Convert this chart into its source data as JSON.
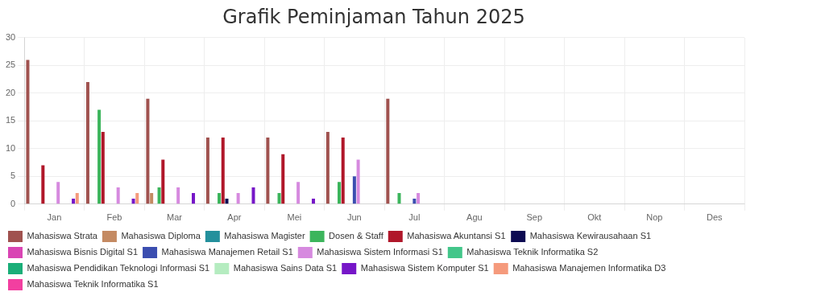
{
  "chart_data": {
    "type": "bar",
    "title": "Grafik Peminjaman Tahun 2025",
    "categories": [
      "Jan",
      "Feb",
      "Mar",
      "Apr",
      "Mei",
      "Jun",
      "Jul",
      "Agu",
      "Sep",
      "Okt",
      "Nop",
      "Des"
    ],
    "series": [
      {
        "name": "Mahasiswa Strata",
        "color": "#a0524f",
        "values": [
          26,
          22,
          19,
          12,
          12,
          13,
          19,
          0,
          0,
          0,
          0,
          0
        ]
      },
      {
        "name": "Mahasiswa Diploma",
        "color": "#c48a62",
        "values": [
          0,
          0,
          2,
          0,
          0,
          0,
          0,
          0,
          0,
          0,
          0,
          0
        ]
      },
      {
        "name": "Mahasiswa Magister",
        "color": "#23909c",
        "values": [
          0,
          0,
          0,
          0,
          0,
          0,
          0,
          0,
          0,
          0,
          0,
          0
        ]
      },
      {
        "name": "Dosen & Staff",
        "color": "#3cb55c",
        "values": [
          0,
          17,
          3,
          2,
          2,
          4,
          2,
          0,
          0,
          0,
          0,
          0
        ]
      },
      {
        "name": "Mahasiswa Akuntansi S1",
        "color": "#b0172a",
        "values": [
          7,
          13,
          8,
          12,
          9,
          12,
          0,
          0,
          0,
          0,
          0,
          0
        ]
      },
      {
        "name": "Mahasiswa Kewirausahaan S1",
        "color": "#0c0a52",
        "values": [
          0,
          0,
          0,
          1,
          0,
          0,
          0,
          0,
          0,
          0,
          0,
          0
        ]
      },
      {
        "name": "Mahasiswa Bisnis Digital S1",
        "color": "#d945b4",
        "values": [
          0,
          0,
          0,
          0,
          0,
          0,
          0,
          0,
          0,
          0,
          0,
          0
        ]
      },
      {
        "name": "Mahasiswa Manajemen Retail S1",
        "color": "#3b4eb0",
        "values": [
          0,
          0,
          0,
          0,
          0,
          5,
          1,
          0,
          0,
          0,
          0,
          0
        ]
      },
      {
        "name": "Mahasiswa Sistem Informasi S1",
        "color": "#d68adf",
        "values": [
          4,
          3,
          3,
          2,
          4,
          8,
          2,
          0,
          0,
          0,
          0,
          0
        ]
      },
      {
        "name": "Mahasiswa Teknik Informatika S2",
        "color": "#43c68a",
        "values": [
          0,
          0,
          0,
          0,
          0,
          0,
          0,
          0,
          0,
          0,
          0,
          0
        ]
      },
      {
        "name": "Mahasiswa Pendidikan Teknologi Informasi S1",
        "color": "#1aae78",
        "values": [
          0,
          0,
          0,
          0,
          0,
          0,
          0,
          0,
          0,
          0,
          0,
          0
        ]
      },
      {
        "name": "Mahasiswa Sains Data S1",
        "color": "#b5ecc0",
        "values": [
          0,
          0,
          0,
          0,
          0,
          0,
          0,
          0,
          0,
          0,
          0,
          0
        ]
      },
      {
        "name": "Mahasiswa Sistem Komputer S1",
        "color": "#7616c8",
        "values": [
          1,
          1,
          2,
          3,
          1,
          0,
          0,
          0,
          0,
          0,
          0,
          0
        ]
      },
      {
        "name": "Mahasiswa Manajemen Informatika D3",
        "color": "#f59a7c",
        "values": [
          2,
          2,
          0,
          0,
          0,
          0,
          0,
          0,
          0,
          0,
          0,
          0
        ]
      },
      {
        "name": "Mahasiswa Teknik Informatika S1",
        "color": "#f23fa0",
        "values": [
          0,
          0,
          0,
          0,
          0,
          0,
          0,
          0,
          0,
          0,
          0,
          0
        ]
      }
    ],
    "ylim": [
      0,
      30
    ],
    "yticks": [
      0,
      5,
      10,
      15,
      20,
      25,
      30
    ],
    "grid": true,
    "legend": "bottom"
  }
}
